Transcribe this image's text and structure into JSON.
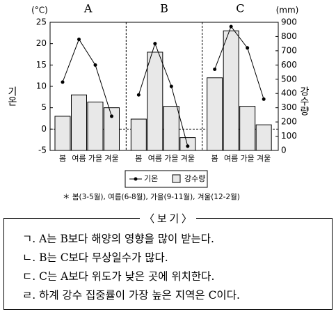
{
  "chart_data": {
    "type": "combo",
    "panels": [
      "A",
      "B",
      "C"
    ],
    "categories": [
      "봄",
      "여름",
      "가을",
      "겨울"
    ],
    "y_unit": "(°C)",
    "y2_unit": "(mm)",
    "y_label": "기온",
    "y2_label": "강수량",
    "ylim": [
      -5,
      25
    ],
    "yticks": [
      -5,
      0,
      5,
      10,
      15,
      20,
      25
    ],
    "y2lim": [
      0,
      900
    ],
    "y2ticks": [
      0,
      100,
      200,
      300,
      400,
      500,
      600,
      700,
      800,
      900
    ],
    "series": [
      {
        "name": "기온",
        "type": "line",
        "color": "#000000",
        "values": [
          [
            11,
            21,
            15,
            3
          ],
          [
            8,
            20,
            10,
            -4
          ],
          [
            14,
            24,
            19,
            7
          ]
        ]
      },
      {
        "name": "강수량",
        "type": "bar",
        "axis": "y2",
        "color": "#e8e8e8",
        "values": [
          [
            240,
            390,
            340,
            300
          ],
          [
            220,
            690,
            310,
            90
          ],
          [
            510,
            840,
            310,
            180
          ]
        ]
      }
    ],
    "note": "＊ 봄(3-5월),   여름(6-8월),   가을(9-11월),   겨울(12-2월)"
  },
  "box": {
    "title": "〈 보 기 〉",
    "items": [
      "ㄱ. A는 B보다 해양의 영향을 많이 받는다.",
      "ㄴ. B는 C보다 무상일수가 많다.",
      "ㄷ. C는 A보다 위도가 낮은 곳에 위치한다.",
      "ㄹ. 하계 강수 집중률이 가장 높은 지역은 C이다."
    ]
  }
}
